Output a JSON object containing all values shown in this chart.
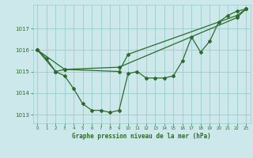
{
  "background_color": "#cce8ea",
  "grid_color": "#99cccc",
  "line_color": "#2d6a2d",
  "xlabel": "Graphe pression niveau de la mer (hPa)",
  "xlim": [
    -0.5,
    23.5
  ],
  "ylim": [
    1012.6,
    1018.1
  ],
  "yticks": [
    1013,
    1014,
    1015,
    1016,
    1017
  ],
  "xticks": [
    0,
    1,
    2,
    3,
    4,
    5,
    6,
    7,
    8,
    9,
    10,
    11,
    12,
    13,
    14,
    15,
    16,
    17,
    18,
    19,
    20,
    21,
    22,
    23
  ],
  "series1_x": [
    0,
    1,
    2,
    3,
    4,
    5,
    6,
    7,
    8,
    9,
    10,
    11,
    12,
    13,
    14,
    15,
    16,
    17,
    18,
    19,
    20,
    21,
    22,
    23
  ],
  "series1_y": [
    1016.0,
    1015.6,
    1015.0,
    1014.8,
    1014.2,
    1013.5,
    1013.2,
    1013.2,
    1013.1,
    1013.2,
    1014.9,
    1015.0,
    1014.7,
    1014.7,
    1014.7,
    1014.8,
    1015.5,
    1016.6,
    1015.9,
    1016.4,
    1017.3,
    1017.6,
    1017.8,
    1017.9
  ],
  "series2_x": [
    0,
    2,
    3,
    9,
    10,
    22,
    23
  ],
  "series2_y": [
    1016.0,
    1015.0,
    1015.1,
    1015.0,
    1015.8,
    1017.6,
    1017.9
  ],
  "series3_x": [
    0,
    3,
    9,
    22,
    23
  ],
  "series3_y": [
    1016.0,
    1015.1,
    1015.2,
    1017.5,
    1017.9
  ]
}
